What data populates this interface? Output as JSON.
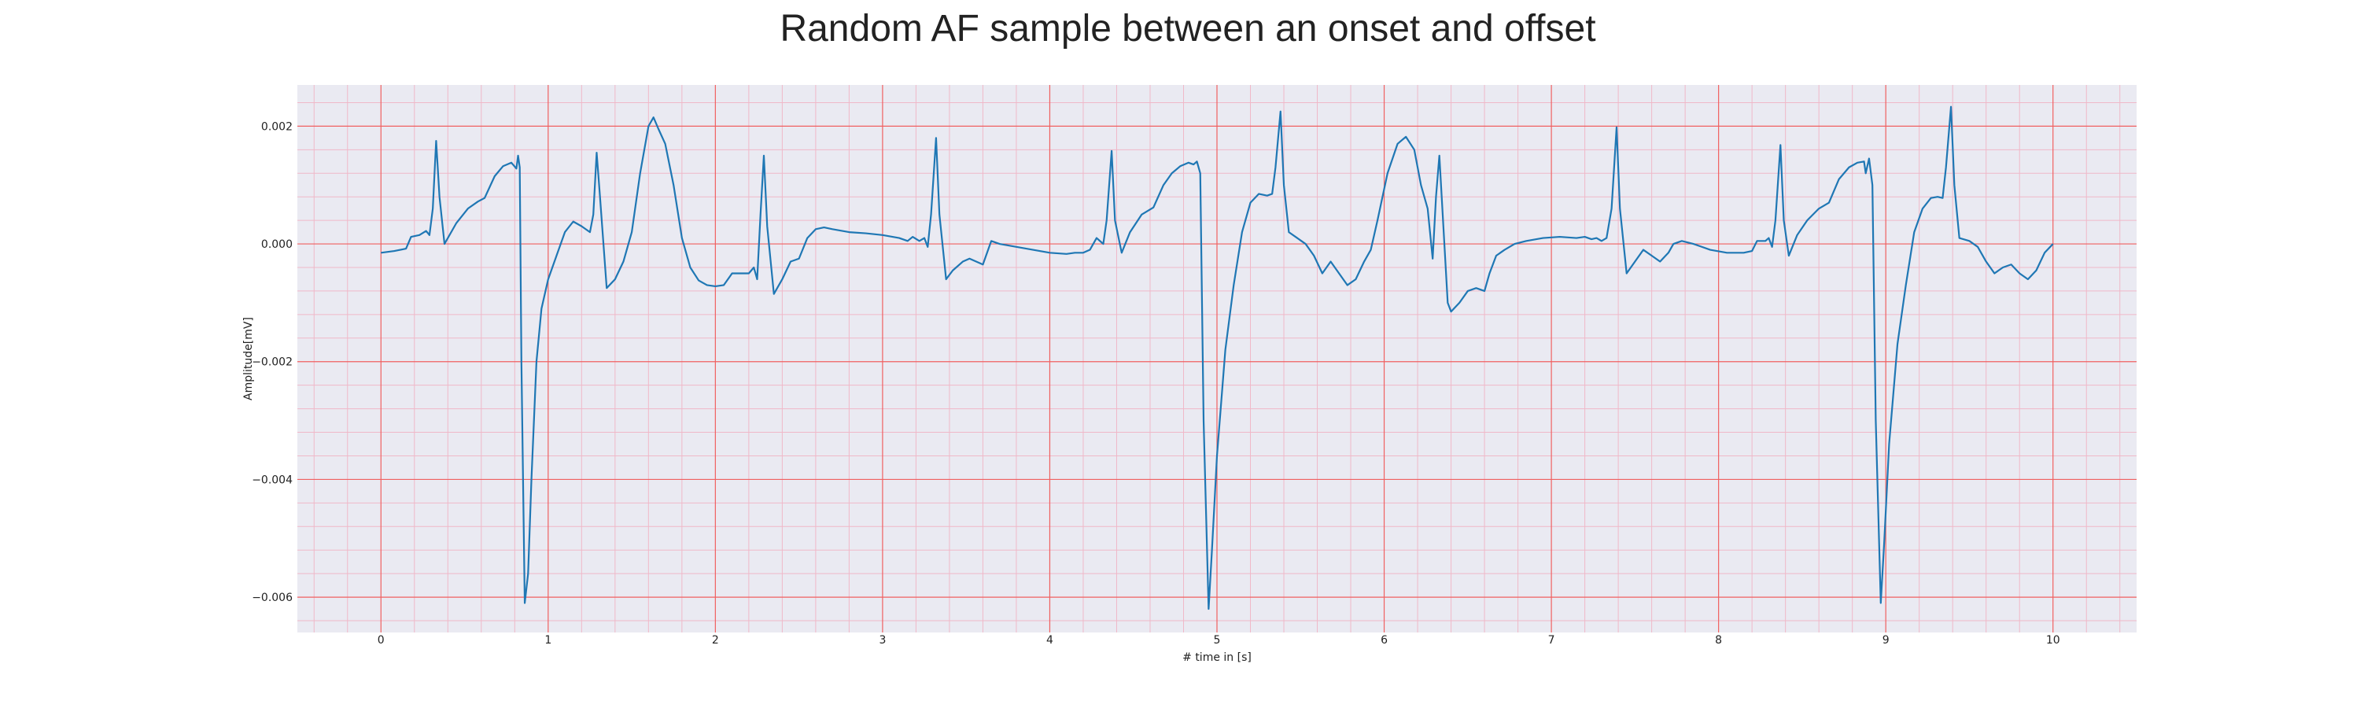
{
  "chart_data": {
    "type": "line",
    "title": "Random AF sample between an onset and offset",
    "xlabel": "# time in [s]",
    "ylabel": "Amplitude[mV]",
    "xlim": [
      -0.5,
      10.5
    ],
    "ylim": [
      -0.0066,
      0.0027
    ],
    "x_ticks": [
      0,
      1,
      2,
      3,
      4,
      5,
      6,
      7,
      8,
      9,
      10
    ],
    "y_ticks": [
      -0.006,
      -0.004,
      -0.002,
      0.0,
      0.002
    ],
    "y_tick_labels": [
      "−0.006",
      "−0.004",
      "−0.002",
      "0.000",
      "0.002"
    ],
    "grid": {
      "major": true,
      "minor": true,
      "major_color": "#f06060",
      "minor_color": "#f0b8c8"
    },
    "background_color": "#eaeaf2",
    "series": [
      {
        "color": "#1f77b4",
        "points": [
          [
            0.0,
            -0.00015
          ],
          [
            0.08,
            -0.00012
          ],
          [
            0.15,
            -8e-05
          ],
          [
            0.18,
            0.00012
          ],
          [
            0.23,
            0.00015
          ],
          [
            0.27,
            0.00022
          ],
          [
            0.29,
            0.00015
          ],
          [
            0.31,
            0.0006
          ],
          [
            0.33,
            0.00175
          ],
          [
            0.35,
            0.0008
          ],
          [
            0.38,
            0.0
          ],
          [
            0.45,
            0.00035
          ],
          [
            0.52,
            0.0006
          ],
          [
            0.58,
            0.00072
          ],
          [
            0.62,
            0.00078
          ],
          [
            0.68,
            0.00115
          ],
          [
            0.73,
            0.00132
          ],
          [
            0.78,
            0.00138
          ],
          [
            0.81,
            0.00128
          ],
          [
            0.82,
            0.0015
          ],
          [
            0.83,
            0.0013
          ],
          [
            0.84,
            -0.002
          ],
          [
            0.86,
            -0.0061
          ],
          [
            0.88,
            -0.0056
          ],
          [
            0.9,
            -0.004
          ],
          [
            0.93,
            -0.002
          ],
          [
            0.96,
            -0.0011
          ],
          [
            1.0,
            -0.0006
          ],
          [
            1.05,
            -0.0002
          ],
          [
            1.1,
            0.0002
          ],
          [
            1.15,
            0.00038
          ],
          [
            1.2,
            0.0003
          ],
          [
            1.25,
            0.0002
          ],
          [
            1.27,
            0.0005
          ],
          [
            1.29,
            0.00155
          ],
          [
            1.31,
            0.0008
          ],
          [
            1.35,
            -0.00075
          ],
          [
            1.4,
            -0.0006
          ],
          [
            1.45,
            -0.0003
          ],
          [
            1.5,
            0.0002
          ],
          [
            1.55,
            0.0012
          ],
          [
            1.6,
            0.002
          ],
          [
            1.63,
            0.00215
          ],
          [
            1.66,
            0.00195
          ],
          [
            1.7,
            0.0017
          ],
          [
            1.75,
            0.001
          ],
          [
            1.8,
            0.0001
          ],
          [
            1.85,
            -0.0004
          ],
          [
            1.9,
            -0.00062
          ],
          [
            1.95,
            -0.0007
          ],
          [
            2.0,
            -0.00072
          ],
          [
            2.05,
            -0.0007
          ],
          [
            2.1,
            -0.0005
          ],
          [
            2.15,
            -0.0005
          ],
          [
            2.2,
            -0.0005
          ],
          [
            2.23,
            -0.0004
          ],
          [
            2.25,
            -0.0006
          ],
          [
            2.27,
            0.0005
          ],
          [
            2.29,
            0.0015
          ],
          [
            2.31,
            0.0003
          ],
          [
            2.35,
            -0.00085
          ],
          [
            2.4,
            -0.0006
          ],
          [
            2.45,
            -0.0003
          ],
          [
            2.5,
            -0.00025
          ],
          [
            2.55,
            0.0001
          ],
          [
            2.6,
            0.00025
          ],
          [
            2.65,
            0.00028
          ],
          [
            2.7,
            0.00025
          ],
          [
            2.8,
            0.0002
          ],
          [
            2.9,
            0.00018
          ],
          [
            3.0,
            0.00015
          ],
          [
            3.1,
            0.0001
          ],
          [
            3.15,
            5e-05
          ],
          [
            3.18,
            0.00012
          ],
          [
            3.22,
            5e-05
          ],
          [
            3.25,
            0.0001
          ],
          [
            3.27,
            -5e-05
          ],
          [
            3.29,
            0.0005
          ],
          [
            3.32,
            0.0018
          ],
          [
            3.34,
            0.0005
          ],
          [
            3.38,
            -0.0006
          ],
          [
            3.42,
            -0.00045
          ],
          [
            3.48,
            -0.0003
          ],
          [
            3.52,
            -0.00025
          ],
          [
            3.56,
            -0.0003
          ],
          [
            3.6,
            -0.00035
          ],
          [
            3.65,
            5e-05
          ],
          [
            3.7,
            0.0
          ],
          [
            3.8,
            -5e-05
          ],
          [
            3.9,
            -0.0001
          ],
          [
            4.0,
            -0.00015
          ],
          [
            4.1,
            -0.00017
          ],
          [
            4.15,
            -0.00015
          ],
          [
            4.2,
            -0.00015
          ],
          [
            4.24,
            -0.0001
          ],
          [
            4.28,
            0.0001
          ],
          [
            4.32,
            0.0
          ],
          [
            4.34,
            0.0004
          ],
          [
            4.37,
            0.00158
          ],
          [
            4.39,
            0.0004
          ],
          [
            4.43,
            -0.00015
          ],
          [
            4.48,
            0.0002
          ],
          [
            4.55,
            0.0005
          ],
          [
            4.62,
            0.00062
          ],
          [
            4.68,
            0.001
          ],
          [
            4.73,
            0.0012
          ],
          [
            4.78,
            0.00132
          ],
          [
            4.83,
            0.00138
          ],
          [
            4.86,
            0.00135
          ],
          [
            4.88,
            0.0014
          ],
          [
            4.9,
            0.0012
          ],
          [
            4.92,
            -0.003
          ],
          [
            4.95,
            -0.0062
          ],
          [
            4.97,
            -0.0052
          ],
          [
            5.0,
            -0.0036
          ],
          [
            5.05,
            -0.0018
          ],
          [
            5.1,
            -0.0007
          ],
          [
            5.15,
            0.0002
          ],
          [
            5.2,
            0.0007
          ],
          [
            5.25,
            0.00085
          ],
          [
            5.3,
            0.00082
          ],
          [
            5.33,
            0.00085
          ],
          [
            5.35,
            0.0013
          ],
          [
            5.38,
            0.00225
          ],
          [
            5.4,
            0.001
          ],
          [
            5.43,
            0.0002
          ],
          [
            5.48,
            0.0001
          ],
          [
            5.53,
            0.0
          ],
          [
            5.58,
            -0.0002
          ],
          [
            5.63,
            -0.0005
          ],
          [
            5.68,
            -0.0003
          ],
          [
            5.73,
            -0.0005
          ],
          [
            5.78,
            -0.0007
          ],
          [
            5.83,
            -0.0006
          ],
          [
            5.88,
            -0.0003
          ],
          [
            5.92,
            -0.0001
          ],
          [
            5.96,
            0.0004
          ],
          [
            6.02,
            0.0012
          ],
          [
            6.08,
            0.0017
          ],
          [
            6.13,
            0.00182
          ],
          [
            6.18,
            0.0016
          ],
          [
            6.22,
            0.001
          ],
          [
            6.26,
            0.0006
          ],
          [
            6.29,
            -0.00025
          ],
          [
            6.31,
            0.0008
          ],
          [
            6.33,
            0.0015
          ],
          [
            6.35,
            0.0005
          ],
          [
            6.38,
            -0.001
          ],
          [
            6.4,
            -0.00115
          ],
          [
            6.45,
            -0.001
          ],
          [
            6.5,
            -0.0008
          ],
          [
            6.55,
            -0.00075
          ],
          [
            6.6,
            -0.0008
          ],
          [
            6.63,
            -0.0005
          ],
          [
            6.67,
            -0.0002
          ],
          [
            6.72,
            -0.0001
          ],
          [
            6.78,
            0.0
          ],
          [
            6.85,
            5e-05
          ],
          [
            6.95,
            0.0001
          ],
          [
            7.05,
            0.00012
          ],
          [
            7.15,
            0.0001
          ],
          [
            7.2,
            0.00012
          ],
          [
            7.24,
            8e-05
          ],
          [
            7.27,
            0.0001
          ],
          [
            7.3,
            5e-05
          ],
          [
            7.33,
            0.0001
          ],
          [
            7.36,
            0.0006
          ],
          [
            7.39,
            0.00198
          ],
          [
            7.41,
            0.0006
          ],
          [
            7.45,
            -0.0005
          ],
          [
            7.5,
            -0.0003
          ],
          [
            7.55,
            -0.0001
          ],
          [
            7.6,
            -0.0002
          ],
          [
            7.65,
            -0.0003
          ],
          [
            7.7,
            -0.00015
          ],
          [
            7.73,
            0.0
          ],
          [
            7.78,
            5e-05
          ],
          [
            7.85,
            0.0
          ],
          [
            7.95,
            -0.0001
          ],
          [
            8.05,
            -0.00015
          ],
          [
            8.15,
            -0.00015
          ],
          [
            8.2,
            -0.00012
          ],
          [
            8.23,
            5e-05
          ],
          [
            8.28,
            5e-05
          ],
          [
            8.3,
            0.0001
          ],
          [
            8.32,
            -5e-05
          ],
          [
            8.34,
            0.0004
          ],
          [
            8.37,
            0.00168
          ],
          [
            8.39,
            0.0004
          ],
          [
            8.42,
            -0.0002
          ],
          [
            8.47,
            0.00015
          ],
          [
            8.53,
            0.0004
          ],
          [
            8.6,
            0.0006
          ],
          [
            8.66,
            0.0007
          ],
          [
            8.72,
            0.0011
          ],
          [
            8.78,
            0.0013
          ],
          [
            8.83,
            0.00138
          ],
          [
            8.87,
            0.0014
          ],
          [
            8.88,
            0.0012
          ],
          [
            8.9,
            0.00145
          ],
          [
            8.92,
            0.001
          ],
          [
            8.94,
            -0.003
          ],
          [
            8.97,
            -0.0061
          ],
          [
            8.99,
            -0.0051
          ],
          [
            9.02,
            -0.0034
          ],
          [
            9.07,
            -0.0017
          ],
          [
            9.12,
            -0.0007
          ],
          [
            9.17,
            0.0002
          ],
          [
            9.22,
            0.0006
          ],
          [
            9.27,
            0.00078
          ],
          [
            9.31,
            0.0008
          ],
          [
            9.34,
            0.00078
          ],
          [
            9.36,
            0.0013
          ],
          [
            9.39,
            0.00233
          ],
          [
            9.41,
            0.001
          ],
          [
            9.44,
            0.0001
          ],
          [
            9.5,
            5e-05
          ],
          [
            9.55,
            -5e-05
          ],
          [
            9.6,
            -0.0003
          ],
          [
            9.65,
            -0.0005
          ],
          [
            9.7,
            -0.0004
          ],
          [
            9.75,
            -0.00035
          ],
          [
            9.8,
            -0.0005
          ],
          [
            9.85,
            -0.0006
          ],
          [
            9.9,
            -0.00045
          ],
          [
            9.95,
            -0.00015
          ],
          [
            10.0,
            0.0
          ]
        ]
      }
    ]
  }
}
